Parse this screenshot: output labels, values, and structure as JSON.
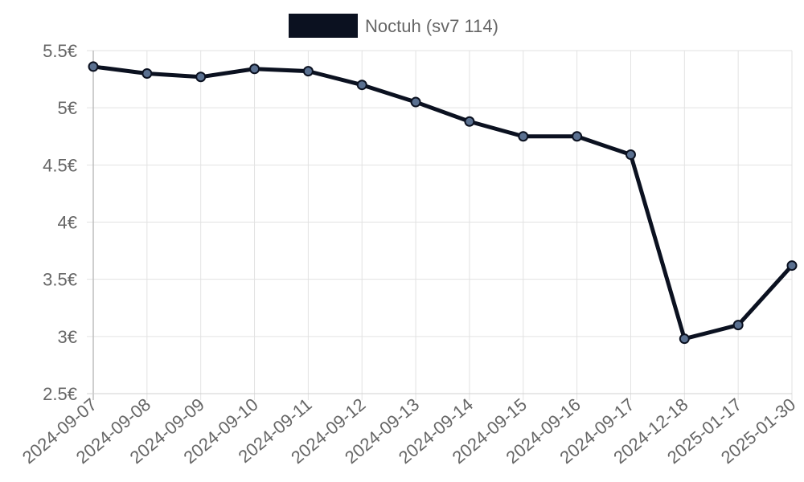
{
  "chart_data": {
    "type": "line",
    "title": "",
    "xlabel": "",
    "ylabel": "",
    "categories": [
      "2024-09-07",
      "2024-09-08",
      "2024-09-09",
      "2024-09-10",
      "2024-09-11",
      "2024-09-12",
      "2024-09-13",
      "2024-09-14",
      "2024-09-15",
      "2024-09-16",
      "2024-09-17",
      "2024-12-18",
      "2025-01-17",
      "2025-01-30"
    ],
    "series": [
      {
        "name": "Noctuh (sv7 114)",
        "values": [
          5.36,
          5.3,
          5.27,
          5.34,
          5.32,
          5.2,
          5.05,
          4.88,
          4.75,
          4.75,
          4.59,
          2.98,
          3.1,
          3.62
        ],
        "line_color": "#0b1120",
        "point_color": "#5a7090"
      }
    ],
    "ylim": [
      2.5,
      5.5
    ],
    "y_ticks": [
      "2.5€",
      "3€",
      "3.5€",
      "4€",
      "4.5€",
      "5€",
      "5.5€"
    ],
    "y_tick_values": [
      2.5,
      3,
      3.5,
      4,
      4.5,
      5,
      5.5
    ],
    "grid": true,
    "legend_position": "top"
  }
}
